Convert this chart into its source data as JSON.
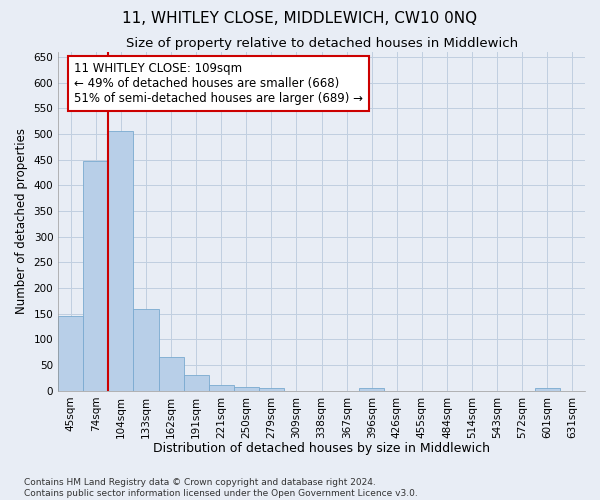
{
  "title1": "11, WHITLEY CLOSE, MIDDLEWICH, CW10 0NQ",
  "title2": "Size of property relative to detached houses in Middlewich",
  "xlabel": "Distribution of detached houses by size in Middlewich",
  "ylabel": "Number of detached properties",
  "categories": [
    "45sqm",
    "74sqm",
    "104sqm",
    "133sqm",
    "162sqm",
    "191sqm",
    "221sqm",
    "250sqm",
    "279sqm",
    "309sqm",
    "338sqm",
    "367sqm",
    "396sqm",
    "426sqm",
    "455sqm",
    "484sqm",
    "514sqm",
    "543sqm",
    "572sqm",
    "601sqm",
    "631sqm"
  ],
  "values": [
    145,
    447,
    505,
    160,
    65,
    30,
    12,
    7,
    5,
    0,
    0,
    0,
    5,
    0,
    0,
    0,
    0,
    0,
    0,
    5,
    0
  ],
  "bar_color": "#b8cfe8",
  "bar_edge_color": "#7aaad0",
  "vline_color": "#cc0000",
  "vline_x": 2.5,
  "annotation_text": "11 WHITLEY CLOSE: 109sqm\n← 49% of detached houses are smaller (668)\n51% of semi-detached houses are larger (689) →",
  "annotation_box_color": "white",
  "annotation_box_edge_color": "#cc0000",
  "ylim": [
    0,
    660
  ],
  "yticks": [
    0,
    50,
    100,
    150,
    200,
    250,
    300,
    350,
    400,
    450,
    500,
    550,
    600,
    650
  ],
  "grid_color": "#c0cfe0",
  "background_color": "#e8edf5",
  "footer_text": "Contains HM Land Registry data © Crown copyright and database right 2024.\nContains public sector information licensed under the Open Government Licence v3.0.",
  "title1_fontsize": 11,
  "title2_fontsize": 9.5,
  "xlabel_fontsize": 9,
  "ylabel_fontsize": 8.5,
  "tick_fontsize": 7.5,
  "annotation_fontsize": 8.5,
  "footer_fontsize": 6.5
}
